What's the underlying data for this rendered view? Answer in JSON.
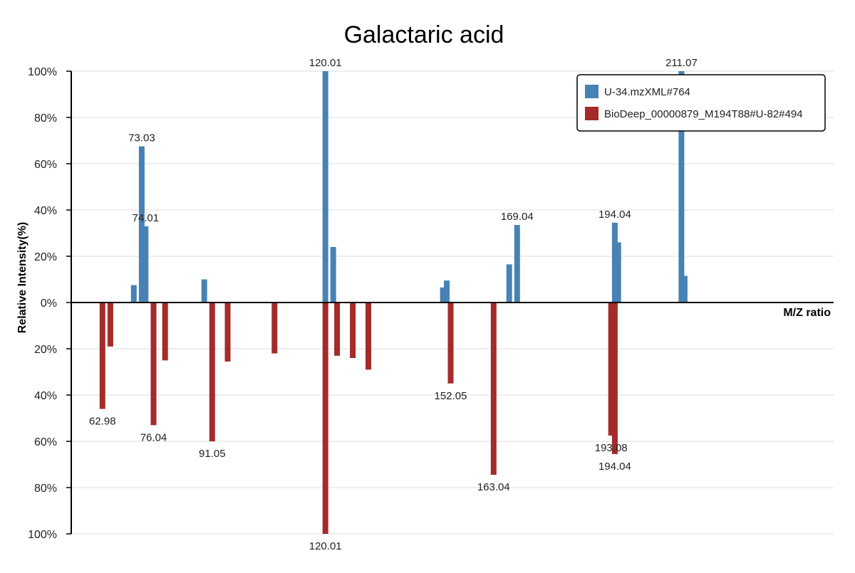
{
  "chart_data": {
    "type": "bar",
    "title": "Galactaric acid",
    "xlabel": "M/Z ratio",
    "ylabel": "Relative Intensity(%)",
    "ylim": [
      -100,
      100
    ],
    "y_ticks": [
      "100%",
      "80%",
      "60%",
      "40%",
      "20%",
      "0%",
      "20%",
      "40%",
      "60%",
      "80%",
      "100%"
    ],
    "grid": true,
    "legend_position": "top-right",
    "series": [
      {
        "name": "U-34.mzXML#764",
        "color": "#4682b4",
        "direction": "up",
        "peaks": [
          {
            "mz": 71.01,
            "intensity": 7.5
          },
          {
            "mz": 73.03,
            "intensity": 67.5,
            "label": "73.03"
          },
          {
            "mz": 74.01,
            "intensity": 33,
            "label": "74.01"
          },
          {
            "mz": 89.02,
            "intensity": 10
          },
          {
            "mz": 120.01,
            "intensity": 100,
            "label": "120.01"
          },
          {
            "mz": 122.01,
            "intensity": 24
          },
          {
            "mz": 150.05,
            "intensity": 6.5
          },
          {
            "mz": 151.05,
            "intensity": 9.5
          },
          {
            "mz": 167.03,
            "intensity": 16.5
          },
          {
            "mz": 169.04,
            "intensity": 33.5,
            "label": "169.04"
          },
          {
            "mz": 194.04,
            "intensity": 34.5,
            "label": "194.04"
          },
          {
            "mz": 194.9,
            "intensity": 26
          },
          {
            "mz": 211.07,
            "intensity": 100,
            "label": "211.07"
          },
          {
            "mz": 211.9,
            "intensity": 11.5
          }
        ]
      },
      {
        "name": "BioDeep_00000879_M194T88#U-82#494",
        "color": "#a52a2a",
        "direction": "down",
        "peaks": [
          {
            "mz": 62.98,
            "intensity": 46,
            "label": "62.98"
          },
          {
            "mz": 65.0,
            "intensity": 19
          },
          {
            "mz": 76.04,
            "intensity": 53,
            "label": "76.04"
          },
          {
            "mz": 79.0,
            "intensity": 25
          },
          {
            "mz": 91.05,
            "intensity": 60,
            "label": "91.05"
          },
          {
            "mz": 95.0,
            "intensity": 25.5
          },
          {
            "mz": 107.0,
            "intensity": 22
          },
          {
            "mz": 120.01,
            "intensity": 100,
            "label": "120.01"
          },
          {
            "mz": 123.0,
            "intensity": 23
          },
          {
            "mz": 127.0,
            "intensity": 24
          },
          {
            "mz": 131.0,
            "intensity": 29
          },
          {
            "mz": 152.05,
            "intensity": 35,
            "label": "152.05"
          },
          {
            "mz": 163.04,
            "intensity": 74.5,
            "label": "163.04"
          },
          {
            "mz": 193.08,
            "intensity": 57.5,
            "label": "193.08"
          },
          {
            "mz": 194.04,
            "intensity": 65.5,
            "label": "194.04"
          }
        ]
      }
    ]
  }
}
